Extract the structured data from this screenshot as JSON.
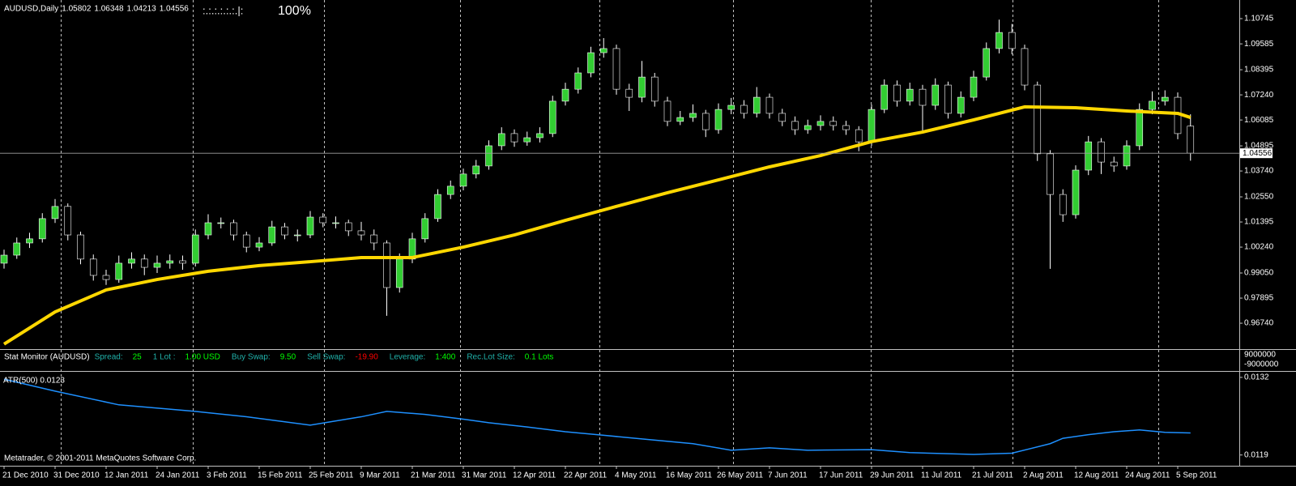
{
  "header": {
    "indicator": ":.:.:.:.:.:.|:",
    "percent": "100%",
    "footer": "Metatrader, © 2001-2011 MetaQuotes Software Corp."
  },
  "stat_monitor": {
    "label": "Stat Monitor (AUDUSD)",
    "items": [
      {
        "label": "Spread:",
        "value": "25",
        "value_color": "#00ff00"
      },
      {
        "label": "1 Lot :",
        "value": "1.00 USD",
        "value_color": "#00ff00"
      },
      {
        "label": "Buy Swap:",
        "value": "9.50",
        "value_color": "#00ff00"
      },
      {
        "label": "Sell Swap:",
        "value": "-19.90",
        "value_color": "#ff0000"
      },
      {
        "label": "Leverage:",
        "value": "1:400",
        "value_color": "#00ff00"
      },
      {
        "label": "Rec.Lot Size:",
        "value": "0.1 Lots",
        "value_color": "#00ff00"
      }
    ],
    "label_color": "#20b2aa",
    "scale_labels": [
      "9000000",
      "-9000000"
    ]
  },
  "chart_data": [
    {
      "type": "candlestick",
      "title": "AUDUSD,Daily",
      "categories": [
        "21 Dec 2010",
        null,
        null,
        null,
        "31 Dec 2010",
        null,
        null,
        null,
        "12 Jan 2011",
        null,
        null,
        null,
        "24 Jan 2011",
        null,
        null,
        null,
        "3 Feb 2011",
        null,
        null,
        null,
        "15 Feb 2011",
        null,
        null,
        null,
        "25 Feb 2011",
        null,
        null,
        null,
        "9 Mar 2011",
        null,
        null,
        null,
        "21 Mar 2011",
        null,
        null,
        null,
        "31 Mar 2011",
        null,
        null,
        null,
        "12 Apr 2011",
        null,
        null,
        null,
        "22 Apr 2011",
        null,
        null,
        null,
        "4 May 2011",
        null,
        null,
        null,
        "16 May 2011",
        null,
        null,
        null,
        "26 May 2011",
        null,
        null,
        null,
        "7 Jun 2011",
        null,
        null,
        null,
        "17 Jun 2011",
        null,
        null,
        null,
        "29 Jun 2011",
        null,
        null,
        null,
        "11 Jul 2011",
        null,
        null,
        null,
        "21 Jul 2011",
        null,
        null,
        null,
        "2 Aug 2011",
        null,
        null,
        null,
        "12 Aug 2011",
        null,
        null,
        null,
        "24 Aug 2011",
        null,
        null,
        null,
        "5 Sep 2011",
        null
      ],
      "open": [
        0.995,
        0.9987,
        1.0043,
        1.0062,
        1.0155,
        1.0211,
        1.008,
        0.9969,
        0.9894,
        0.9875,
        0.995,
        0.9969,
        0.9931,
        0.995,
        0.9961,
        0.995,
        1.008,
        1.0136,
        1.0136,
        1.008,
        1.0024,
        1.0043,
        1.0117,
        1.008,
        1.008,
        1.0162,
        1.0136,
        1.0136,
        1.0099,
        1.008,
        1.0043,
        0.9838,
        0.9969,
        1.0062,
        1.0155,
        1.0266,
        1.0304,
        1.036,
        1.0397,
        1.049,
        1.0546,
        1.0508,
        1.0527,
        1.0546,
        1.0695,
        1.075,
        1.0825,
        1.0918,
        1.0937,
        1.075,
        1.0713,
        1.0806,
        1.0695,
        1.0602,
        1.062,
        1.0639,
        1.0564,
        1.0657,
        1.0676,
        1.0639,
        1.0713,
        1.0639,
        1.0602,
        1.0564,
        1.0583,
        1.0602,
        1.0583,
        1.0564,
        1.0508,
        1.0657,
        1.0769,
        1.0695,
        1.075,
        1.0676,
        1.0769,
        1.0639,
        1.0713,
        1.0806,
        1.0937,
        1.1011,
        1.0937,
        1.0769,
        1.0453,
        1.0266,
        1.0173,
        1.0378,
        1.0508,
        1.0415,
        1.0397,
        1.049,
        1.0657,
        1.0695,
        1.0713,
        1.05802
      ],
      "high": [
        1.0012,
        1.0068,
        1.009,
        1.018,
        1.0245,
        1.0225,
        1.0095,
        0.999,
        0.992,
        0.9985,
        1.0,
        0.999,
        0.9985,
        0.999,
        0.9985,
        1.0105,
        1.0175,
        1.016,
        1.015,
        1.0095,
        1.007,
        1.0145,
        1.0135,
        1.0105,
        1.019,
        1.018,
        1.0165,
        1.015,
        1.014,
        1.0105,
        1.0055,
        0.9995,
        1.009,
        1.018,
        1.029,
        1.033,
        1.0385,
        1.0425,
        1.0515,
        1.0575,
        1.0565,
        1.0555,
        1.0575,
        1.072,
        1.078,
        1.085,
        1.0945,
        1.0985,
        1.0955,
        1.0775,
        1.088,
        1.0825,
        1.0715,
        1.065,
        1.068,
        1.0655,
        1.0685,
        1.071,
        1.07,
        1.076,
        1.073,
        1.066,
        1.0625,
        1.061,
        1.063,
        1.0625,
        1.0605,
        1.058,
        1.068,
        1.0795,
        1.079,
        1.078,
        1.077,
        1.08,
        1.0785,
        1.074,
        1.0835,
        1.0965,
        1.107,
        1.105,
        1.0955,
        1.0785,
        1.047,
        1.029,
        1.04,
        1.0535,
        1.0525,
        1.044,
        1.0515,
        1.0685,
        1.074,
        1.0745,
        1.0735,
        1.06348
      ],
      "low": [
        0.9925,
        0.997,
        1.002,
        1.0045,
        1.0135,
        1.0055,
        0.9945,
        0.987,
        0.985,
        0.986,
        0.9925,
        0.9895,
        0.9905,
        0.9925,
        0.992,
        0.9935,
        1.006,
        1.011,
        1.0055,
        1.0,
        1.0005,
        1.003,
        1.006,
        1.005,
        1.0065,
        1.0115,
        1.011,
        1.0075,
        1.0055,
        1.001,
        0.9708,
        0.9815,
        0.995,
        1.0045,
        1.014,
        1.0245,
        1.0285,
        1.034,
        1.038,
        1.047,
        1.0485,
        1.049,
        1.0505,
        1.053,
        1.0675,
        1.073,
        1.0805,
        1.0895,
        1.0725,
        1.065,
        1.069,
        1.067,
        1.058,
        1.0585,
        1.06,
        1.053,
        1.0545,
        1.0635,
        1.0615,
        1.062,
        1.0615,
        1.058,
        1.054,
        1.0545,
        1.056,
        1.056,
        1.054,
        1.0465,
        1.049,
        1.064,
        1.067,
        1.0675,
        1.055,
        1.0655,
        1.0615,
        1.062,
        1.0695,
        1.079,
        1.0915,
        1.091,
        1.0745,
        1.042,
        0.9924,
        1.014,
        1.0155,
        1.0355,
        1.036,
        1.037,
        1.038,
        1.047,
        1.0635,
        1.0675,
        1.052,
        1.04213
      ],
      "close": [
        0.9987,
        1.0043,
        1.0062,
        1.0155,
        1.0211,
        1.008,
        0.9969,
        0.9894,
        0.9875,
        0.995,
        0.9969,
        0.9931,
        0.995,
        0.9961,
        0.995,
        1.008,
        1.0136,
        1.0136,
        1.008,
        1.0024,
        1.0043,
        1.0117,
        1.008,
        1.008,
        1.0162,
        1.0136,
        1.0136,
        1.0099,
        1.008,
        1.0043,
        0.9838,
        0.9969,
        1.0062,
        1.0155,
        1.0266,
        1.0304,
        1.036,
        1.0397,
        1.049,
        1.0546,
        1.0508,
        1.0527,
        1.0546,
        1.0695,
        1.075,
        1.0825,
        1.0918,
        1.0937,
        1.075,
        1.0713,
        1.0806,
        1.0695,
        1.0602,
        1.062,
        1.0639,
        1.0564,
        1.0657,
        1.0676,
        1.0639,
        1.0713,
        1.0639,
        1.0602,
        1.0564,
        1.0583,
        1.0602,
        1.0583,
        1.0564,
        1.0508,
        1.0657,
        1.0769,
        1.0695,
        1.075,
        1.0676,
        1.0769,
        1.0639,
        1.0713,
        1.0806,
        1.0937,
        1.1011,
        1.0937,
        1.0769,
        1.0453,
        1.0266,
        1.0173,
        1.0378,
        1.0508,
        1.0415,
        1.0397,
        1.049,
        1.0657,
        1.0695,
        1.0713,
        1.0546,
        1.04556
      ],
      "bull_color": "#32cd32",
      "bear_color": "#000000",
      "wick_color": "#ffffff",
      "moving_average": {
        "color": "#ffd700",
        "x": [
          0,
          4,
          8,
          12,
          16,
          20,
          24,
          28,
          32,
          36,
          40,
          44,
          48,
          52,
          56,
          60,
          64,
          68,
          72,
          76,
          80,
          84,
          88,
          92,
          93
        ],
        "values": [
          0.9578,
          0.9726,
          0.9827,
          0.9875,
          0.9913,
          0.9939,
          0.9957,
          0.9976,
          0.9976,
          1.0024,
          1.008,
          1.0147,
          1.0211,
          1.0274,
          1.0333,
          1.0393,
          1.0445,
          1.0509,
          1.0553,
          1.0609,
          1.0669,
          1.0665,
          1.065,
          1.0639,
          1.062
        ]
      },
      "ylim": [
        0.95587,
        1.11602
      ],
      "yticks": [
        1.10745,
        1.09585,
        1.08395,
        {
          "value": 1.0724,
          "label": "1.07240"
        },
        1.06085,
        1.04895,
        {
          "value": 1.0374,
          "label": "1.03740"
        },
        {
          "value": 1.0255,
          "label": "1.02550"
        },
        1.01395,
        {
          "value": 1.0024,
          "label": "1.00240"
        },
        {
          "value": 0.9905,
          "label": "0.99050"
        },
        0.97895,
        {
          "value": 0.9674,
          "label": "0.96740"
        }
      ]
    },
    {
      "type": "line",
      "title": "ATR(500) 0.0123",
      "color": "#1e90ff",
      "x": [
        0,
        4,
        9,
        15,
        19,
        24,
        28,
        30,
        33,
        36,
        38,
        41,
        44,
        47,
        50,
        54,
        57,
        60,
        63,
        68,
        71,
        76,
        79,
        82,
        83,
        85,
        87,
        89,
        91,
        93
      ],
      "values": [
        0.01317,
        0.01297,
        0.01274,
        0.01263,
        0.01254,
        0.0124,
        0.01254,
        0.01263,
        0.01258,
        0.0125,
        0.01244,
        0.01237,
        0.01229,
        0.01223,
        0.01217,
        0.01209,
        0.01198,
        0.01202,
        0.01198,
        0.01199,
        0.01194,
        0.01191,
        0.01193,
        0.01209,
        0.01218,
        0.01224,
        0.01229,
        0.01232,
        0.01228,
        0.01227
      ],
      "ylim": [
        0.01172,
        0.01328
      ],
      "yticks": [
        0.0132,
        0.0119
      ]
    }
  ]
}
